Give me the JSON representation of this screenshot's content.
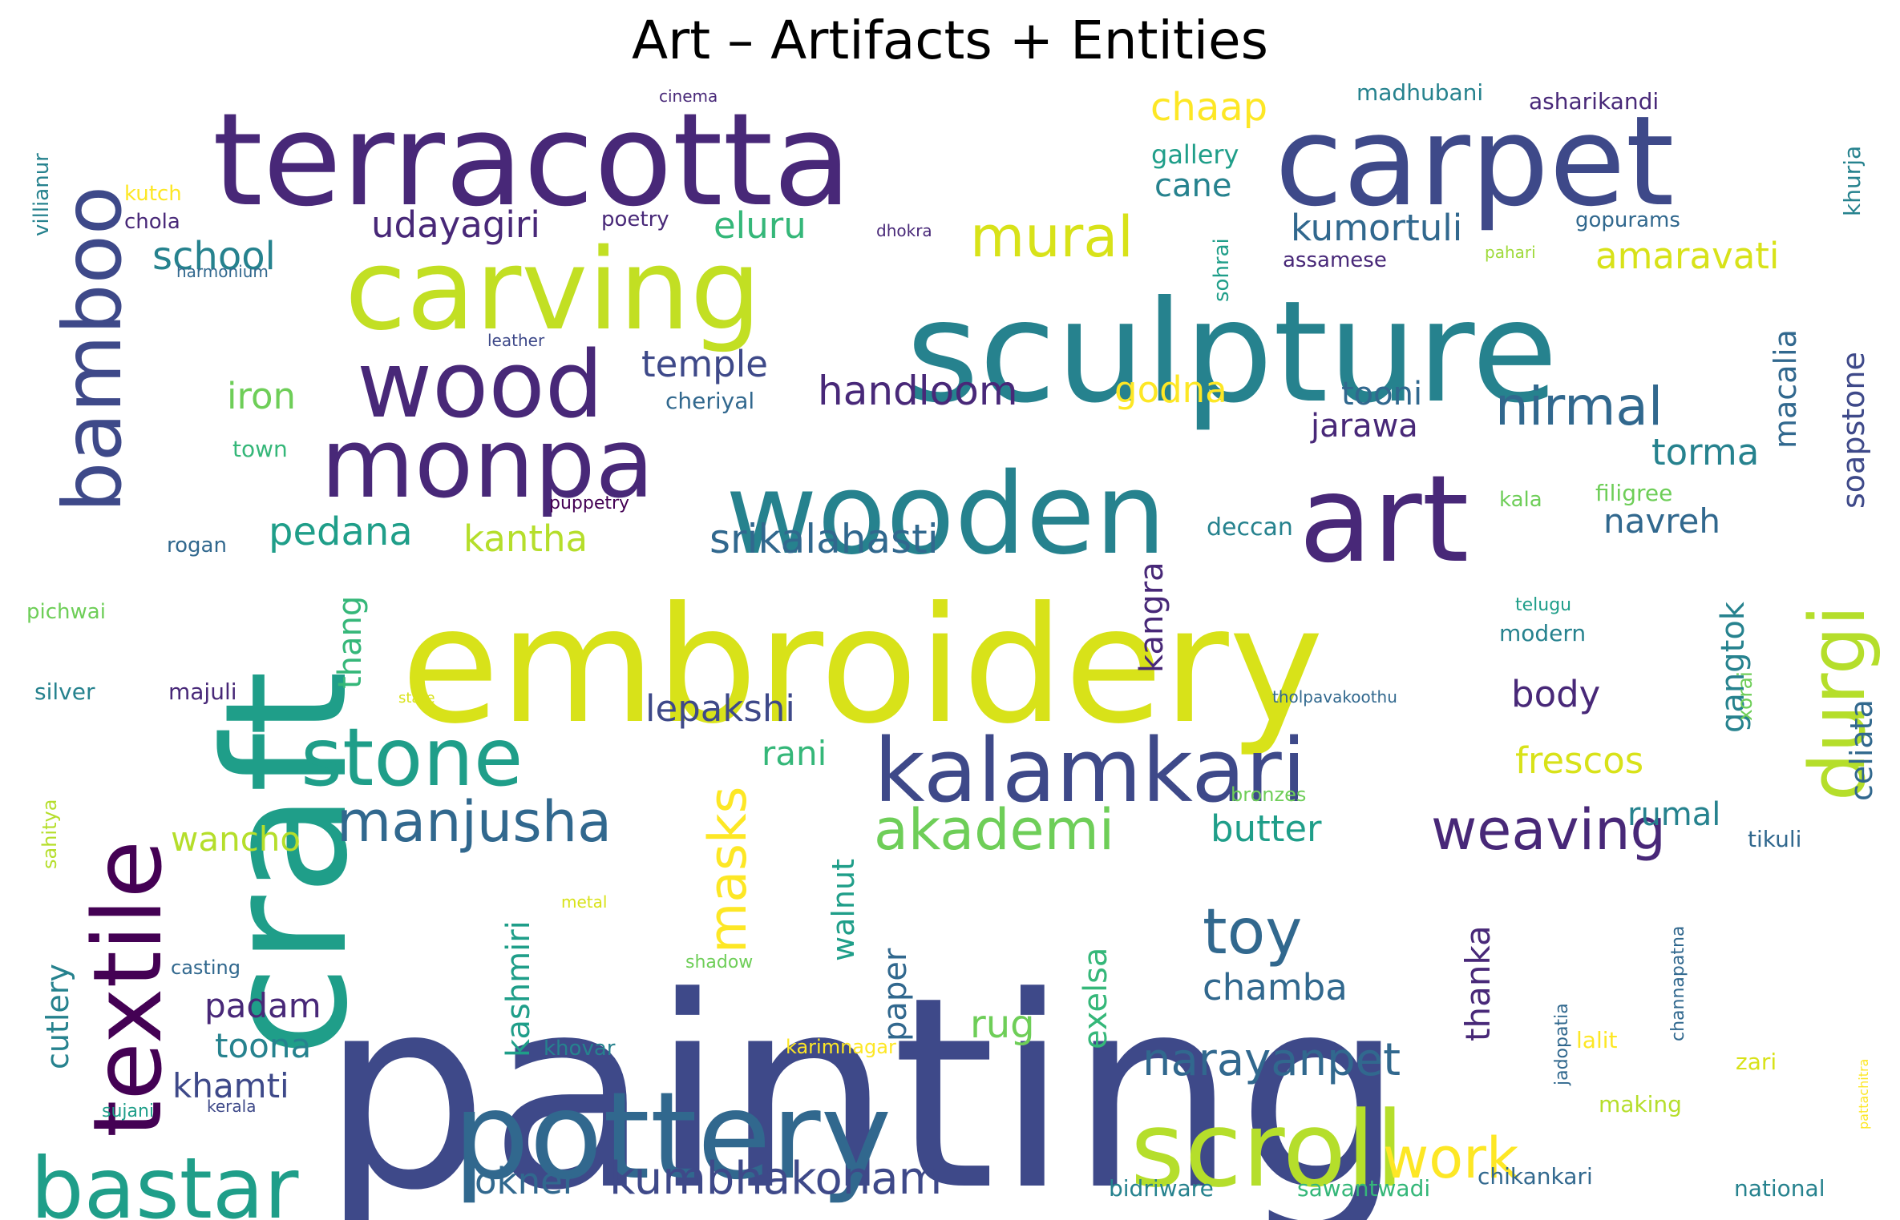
{
  "title": "Art – Artifacts + Entities",
  "palette": [
    "#440154",
    "#482878",
    "#3e4989",
    "#31688e",
    "#26828e",
    "#1f9e89",
    "#35b779",
    "#6ece58",
    "#b5de2b",
    "#fde725"
  ],
  "words": [
    {
      "text": "painting",
      "color": "#3e4989"
    },
    {
      "text": "craft",
      "color": "#1f9e89"
    },
    {
      "text": "embroidery",
      "color": "#d8e219"
    },
    {
      "text": "terracotta",
      "color": "#482878"
    },
    {
      "text": "carpet",
      "color": "#3e4989"
    },
    {
      "text": "sculpture",
      "color": "#26828e"
    },
    {
      "text": "carving",
      "color": "#c2df23"
    },
    {
      "text": "wooden",
      "color": "#26828e"
    },
    {
      "text": "art",
      "color": "#482878"
    },
    {
      "text": "textile",
      "color": "#440154"
    },
    {
      "text": "bamboo",
      "color": "#3e4989"
    },
    {
      "text": "pottery",
      "color": "#31688e"
    },
    {
      "text": "scroll",
      "color": "#b5de2b"
    },
    {
      "text": "durgi",
      "color": "#b5de2b"
    },
    {
      "text": "kalamkari",
      "color": "#3e4989"
    },
    {
      "text": "stone",
      "color": "#1f9e89"
    },
    {
      "text": "monpa",
      "color": "#482878"
    },
    {
      "text": "wood",
      "color": "#482878"
    },
    {
      "text": "bastar",
      "color": "#1f9e89"
    },
    {
      "text": "manjusha",
      "color": "#31688e"
    },
    {
      "text": "weaving",
      "color": "#482878"
    },
    {
      "text": "akademi",
      "color": "#6ece58"
    },
    {
      "text": "masks",
      "color": "#fde725"
    },
    {
      "text": "mural",
      "color": "#d8e219"
    },
    {
      "text": "nirmal",
      "color": "#31688e"
    },
    {
      "text": "toy",
      "color": "#31688e"
    },
    {
      "text": "work",
      "color": "#fde725"
    },
    {
      "text": "narayanpet",
      "color": "#31688e"
    },
    {
      "text": "kumbhakonam",
      "color": "#3e4989"
    },
    {
      "text": "okner",
      "color": "#31688e"
    },
    {
      "text": "srikalahasti",
      "color": "#31688e"
    },
    {
      "text": "handloom",
      "color": "#482878"
    },
    {
      "text": "udayagiri",
      "color": "#482878"
    },
    {
      "text": "school",
      "color": "#26828e"
    },
    {
      "text": "eluru",
      "color": "#35b779"
    },
    {
      "text": "temple",
      "color": "#3e4989"
    },
    {
      "text": "iron",
      "color": "#6ece58"
    },
    {
      "text": "godna",
      "color": "#fde725"
    },
    {
      "text": "pedana",
      "color": "#1f9e89"
    },
    {
      "text": "kantha",
      "color": "#b5de2b"
    },
    {
      "text": "lepakshi",
      "color": "#3e4989"
    },
    {
      "text": "rani",
      "color": "#35b779"
    },
    {
      "text": "frescos",
      "color": "#d8e219"
    },
    {
      "text": "chaap",
      "color": "#fde725"
    },
    {
      "text": "gallery",
      "color": "#1f9e89"
    },
    {
      "text": "cane",
      "color": "#26828e"
    },
    {
      "text": "kumortuli",
      "color": "#31688e"
    },
    {
      "text": "amaravati",
      "color": "#d8e219"
    },
    {
      "text": "tooni",
      "color": "#31688e"
    },
    {
      "text": "jarawa",
      "color": "#482878"
    },
    {
      "text": "torma",
      "color": "#26828e"
    },
    {
      "text": "navreh",
      "color": "#31688e"
    },
    {
      "text": "filigree",
      "color": "#6ece58"
    },
    {
      "text": "kala",
      "color": "#6ece58"
    },
    {
      "text": "deccan",
      "color": "#26828e"
    },
    {
      "text": "body",
      "color": "#482878"
    },
    {
      "text": "rumal",
      "color": "#26828e"
    },
    {
      "text": "tikuli",
      "color": "#31688e"
    },
    {
      "text": "butter",
      "color": "#1f9e89"
    },
    {
      "text": "wancho",
      "color": "#b5de2b"
    },
    {
      "text": "padam",
      "color": "#482878"
    },
    {
      "text": "toona",
      "color": "#26828e"
    },
    {
      "text": "khamti",
      "color": "#3e4989"
    },
    {
      "text": "rug",
      "color": "#6ece58"
    },
    {
      "text": "chamba",
      "color": "#31688e"
    },
    {
      "text": "exelsa",
      "color": "#35b779"
    },
    {
      "text": "kashmiri",
      "color": "#1f9e89"
    },
    {
      "text": "paper",
      "color": "#31688e"
    },
    {
      "text": "walnut",
      "color": "#1f9e89"
    },
    {
      "text": "thanka",
      "color": "#482878"
    },
    {
      "text": "thang",
      "color": "#35b779"
    },
    {
      "text": "kangra",
      "color": "#482878"
    },
    {
      "text": "cutlery",
      "color": "#26828e"
    },
    {
      "text": "gangtok",
      "color": "#26828e"
    },
    {
      "text": "celiata",
      "color": "#31688e"
    },
    {
      "text": "macalia",
      "color": "#31688e"
    },
    {
      "text": "soapstone",
      "color": "#3e4989"
    },
    {
      "text": "xorai",
      "color": "#6ece58"
    },
    {
      "text": "madhubani",
      "color": "#26828e"
    },
    {
      "text": "asharikandi",
      "color": "#482878"
    },
    {
      "text": "gopurams",
      "color": "#31688e"
    },
    {
      "text": "khurja",
      "color": "#26828e"
    },
    {
      "text": "pahari",
      "color": "#9fda3a"
    },
    {
      "text": "assamese",
      "color": "#482878"
    },
    {
      "text": "sohrai",
      "color": "#1f9e89"
    },
    {
      "text": "cinema",
      "color": "#482878"
    },
    {
      "text": "dhokra",
      "color": "#482878"
    },
    {
      "text": "poetry",
      "color": "#482878"
    },
    {
      "text": "kutch",
      "color": "#fde725"
    },
    {
      "text": "chola",
      "color": "#482878"
    },
    {
      "text": "harmonium",
      "color": "#31688e"
    },
    {
      "text": "villianur",
      "color": "#26828e"
    },
    {
      "text": "leather",
      "color": "#3e4989"
    },
    {
      "text": "cheriyal",
      "color": "#31688e"
    },
    {
      "text": "town",
      "color": "#35b779"
    },
    {
      "text": "puppetry",
      "color": "#440154"
    },
    {
      "text": "rogan",
      "color": "#31688e"
    },
    {
      "text": "pichwai",
      "color": "#6ece58"
    },
    {
      "text": "silver",
      "color": "#26828e"
    },
    {
      "text": "majuli",
      "color": "#482878"
    },
    {
      "text": "state",
      "color": "#d8e219"
    },
    {
      "text": "sahitya",
      "color": "#b5de2b"
    },
    {
      "text": "metal",
      "color": "#d8e219"
    },
    {
      "text": "casting",
      "color": "#31688e"
    },
    {
      "text": "shadow",
      "color": "#6ece58"
    },
    {
      "text": "khovar",
      "color": "#26828e"
    },
    {
      "text": "karimnagar",
      "color": "#fde725"
    },
    {
      "text": "sujani",
      "color": "#1f9e89"
    },
    {
      "text": "kerala",
      "color": "#3e4989"
    },
    {
      "text": "bidriware",
      "color": "#26828e"
    },
    {
      "text": "sawantwadi",
      "color": "#35b779"
    },
    {
      "text": "chikankari",
      "color": "#31688e"
    },
    {
      "text": "national",
      "color": "#26828e"
    },
    {
      "text": "making",
      "color": "#b5de2b"
    },
    {
      "text": "lalit",
      "color": "#fde725"
    },
    {
      "text": "zari",
      "color": "#d8e219"
    },
    {
      "text": "pattachitra",
      "color": "#fde725"
    },
    {
      "text": "channapatna",
      "color": "#31688e"
    },
    {
      "text": "jadopatia",
      "color": "#31688e"
    },
    {
      "text": "telugu",
      "color": "#1f9e89"
    },
    {
      "text": "modern",
      "color": "#26828e"
    },
    {
      "text": "tholpavakoothu",
      "color": "#31688e"
    },
    {
      "text": "bronzes",
      "color": "#6ece58"
    }
  ]
}
